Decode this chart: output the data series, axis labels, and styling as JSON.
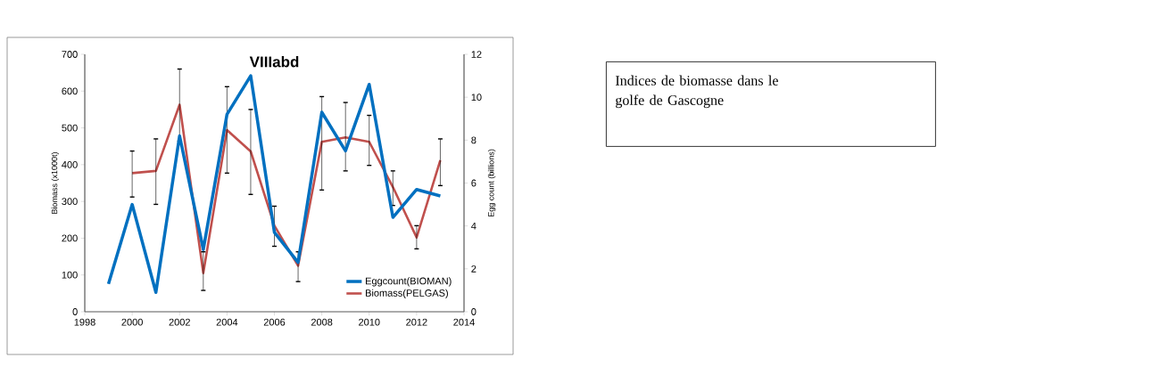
{
  "chart_data": {
    "type": "line",
    "title": "VIIIabd",
    "ylabel": "Biomass (x1000t)",
    "y2label": "Egg count (billions)",
    "xlim": [
      1998,
      2014
    ],
    "xticks": [
      1998,
      2000,
      2002,
      2004,
      2006,
      2008,
      2010,
      2012,
      2014
    ],
    "ylim": [
      0,
      700
    ],
    "yticks": [
      0,
      100,
      200,
      300,
      400,
      500,
      600,
      700
    ],
    "y2lim": [
      0,
      12
    ],
    "y2ticks": [
      0,
      2,
      4,
      6,
      8,
      10,
      12
    ],
    "legend": "bottom right",
    "series": [
      {
        "name": "Eggcount(BIOMAN)",
        "color": "#0070c0",
        "axis": "y2",
        "x": [
          1999,
          2000,
          2001,
          2002,
          2003,
          2004,
          2005,
          2006,
          2007,
          2008,
          2009,
          2010,
          2011,
          2012,
          2013
        ],
        "values": [
          1.3,
          5.0,
          0.9,
          8.2,
          2.9,
          9.2,
          11.0,
          3.7,
          2.3,
          9.3,
          7.5,
          10.6,
          4.4,
          5.7,
          5.4
        ]
      },
      {
        "name": "Biomass(PELGAS)",
        "color": "#c0504d",
        "x": [
          2000,
          2001,
          2002,
          2003,
          2004,
          2005,
          2006,
          2007,
          2008,
          2009,
          2010,
          2011,
          2012,
          2013
        ],
        "values": [
          377,
          383,
          563,
          105,
          494,
          436,
          234,
          125,
          462,
          474,
          462,
          339,
          202,
          412
        ],
        "errors": [
          [
            312,
            437
          ],
          [
            292,
            470
          ],
          [
            464,
            660
          ],
          [
            58,
            163
          ],
          [
            377,
            612
          ],
          [
            319,
            550
          ],
          [
            178,
            287
          ],
          [
            82,
            163
          ],
          [
            331,
            585
          ],
          [
            383,
            569
          ],
          [
            398,
            534
          ],
          [
            289,
            383
          ],
          [
            171,
            234
          ],
          [
            343,
            470
          ]
        ]
      }
    ],
    "annotations": [
      "Indices de biomasse dans le golfe de Gascogne"
    ]
  }
}
